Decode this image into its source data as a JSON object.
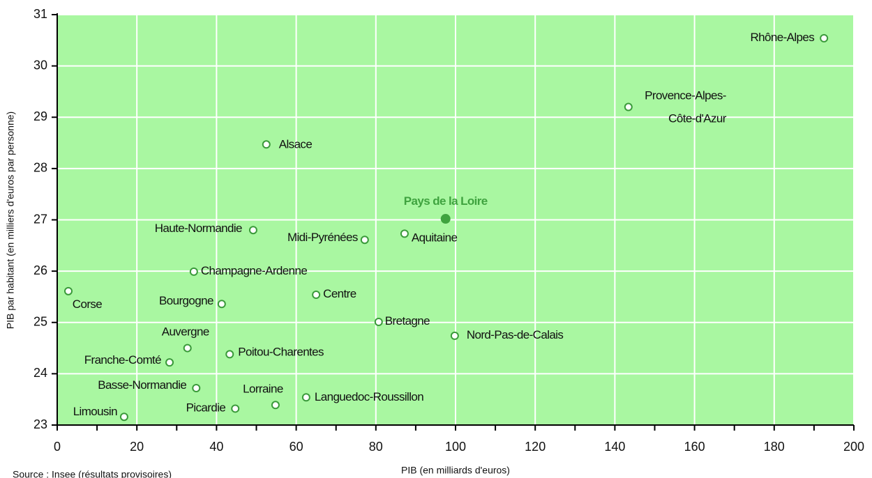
{
  "chart_data": {
    "type": "scatter",
    "xlabel": "PIB (en milliards d'euros)",
    "ylabel": "PIB par habitant (en milliers d'euros par personne)",
    "source": "Source : Insee (résultats provisoires)",
    "xlim": [
      0,
      200
    ],
    "xticks": [
      0,
      20,
      40,
      60,
      80,
      100,
      120,
      140,
      160,
      180,
      200
    ],
    "ylim": [
      23,
      31
    ],
    "yticks": [
      23,
      24,
      25,
      26,
      27,
      28,
      29,
      30,
      31
    ],
    "grid": true,
    "background": "#a9f7a1",
    "series": [
      {
        "color": "#3a9a3a",
        "marker": "open",
        "labels": [
          "Rhône-Alpes",
          "Provence-Alpes-\nCôte-d'Azur",
          "Alsace",
          "Haute-Normandie",
          "Midi-Pyrénées",
          "Aquitaine",
          "Champagne-Ardenne",
          "Corse",
          "Bourgogne",
          "Centre",
          "Bretagne",
          "Nord-Pas-de-Calais",
          "Auvergne",
          "Poitou-Charentes",
          "Franche-Comté",
          "Basse-Normandie",
          "Lorraine",
          "Languedoc-Roussillon",
          "Picardie",
          "Limousin"
        ],
        "x": [
          192.5,
          143.4,
          52.5,
          49.2,
          77.2,
          87.2,
          34.3,
          2.8,
          41.3,
          65,
          80.7,
          99.8,
          32.7,
          43.3,
          28.2,
          34.9,
          54.8,
          62.5,
          44.7,
          16.8
        ],
        "values": [
          30.54,
          29.2,
          28.47,
          26.8,
          26.61,
          26.73,
          25.99,
          25.61,
          25.36,
          25.54,
          25.01,
          24.74,
          24.5,
          24.38,
          24.22,
          23.72,
          23.39,
          23.54,
          23.32,
          23.16
        ]
      },
      {
        "color": "#3fa33f",
        "marker": "filled",
        "labels": [
          "Pays de la Loire"
        ],
        "x": [
          97.5
        ],
        "values": [
          27.02
        ]
      }
    ]
  }
}
